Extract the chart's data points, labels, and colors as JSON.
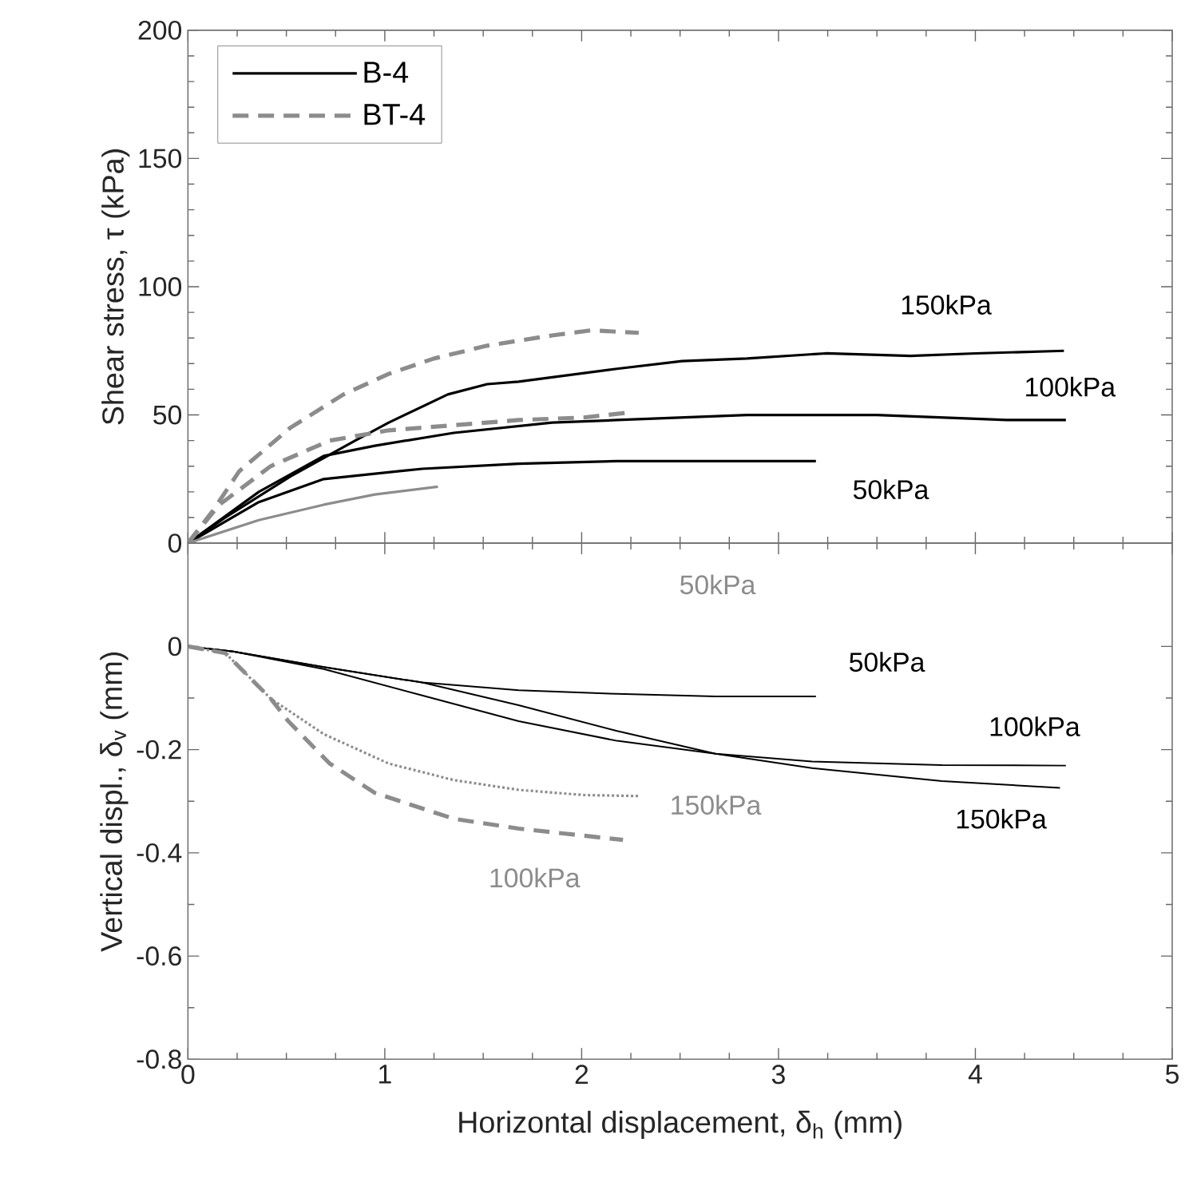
{
  "chart_data": [
    {
      "type": "line",
      "ylabel": "Shear stress, τ (kPa)",
      "xlim": [
        0,
        5
      ],
      "xticks": [
        0,
        1,
        2,
        3,
        4,
        5
      ],
      "ylim": [
        0,
        200
      ],
      "yticks": [
        0,
        50,
        100,
        150,
        200
      ],
      "tick_labels": "y",
      "grid": false,
      "legend": "top left",
      "marker": "none",
      "series": [
        {
          "name": "B-4",
          "color": "#000000",
          "line_style": "solid",
          "x": [
            0,
            0.19,
            0.52,
            0.85,
            1.02,
            1.32,
            1.52,
            1.68,
            2.18,
            2.51,
            2.84,
            3.24,
            3.67,
            4.0,
            4.45
          ],
          "values": [
            0,
            10,
            26,
            40,
            47,
            58,
            62,
            63,
            68,
            71,
            72,
            74,
            73,
            74,
            75
          ]
        },
        {
          "name": "BT-4",
          "color": "#8c8c8c",
          "line_style": "dashed",
          "x": [
            0,
            0.13,
            0.26,
            0.52,
            0.79,
            1.02,
            1.25,
            1.52,
            1.85,
            2.05,
            2.29
          ],
          "values": [
            0,
            13,
            28,
            45,
            58,
            66,
            72,
            77,
            81,
            83,
            82
          ]
        },
        {
          "color": "#000000",
          "line_style": "solid",
          "x": [
            0,
            0.36,
            0.69,
            0.95,
            1.35,
            1.85,
            2.18,
            2.84,
            3.5,
            4.16,
            4.46
          ],
          "values": [
            0,
            20,
            34,
            38,
            43,
            47,
            48,
            50,
            50,
            48,
            48
          ]
        },
        {
          "color": "#000000",
          "line_style": "solid",
          "x": [
            0,
            0.36,
            0.69,
            1.19,
            1.68,
            2.18,
            2.68,
            3.19
          ],
          "values": [
            0,
            16,
            25,
            29,
            31,
            32,
            32,
            32
          ]
        },
        {
          "color": "#8c8c8c",
          "line_style": "dashed",
          "x": [
            0,
            0.16,
            0.42,
            0.72,
            1.02,
            1.35,
            1.68,
            2.01,
            2.25
          ],
          "values": [
            0,
            15,
            30,
            40,
            44,
            46,
            48,
            49,
            51
          ]
        },
        {
          "color": "#8c8c8c",
          "line_style": "solid",
          "x": [
            0,
            0.36,
            0.69,
            0.95,
            1.27
          ],
          "values": [
            0,
            9,
            15,
            19,
            22
          ]
        }
      ],
      "annotations": [
        "150kPa",
        "100kPa",
        "50kPa"
      ]
    },
    {
      "type": "line",
      "xlabel": "Horizontal displacement, δ$_{h}$ (mm)",
      "ylabel": "Vertical displ., δ$_{v}$ (mm)",
      "xlim": [
        0,
        5
      ],
      "xticks": [
        0,
        1,
        2,
        3,
        4,
        5
      ],
      "ylim": [
        -0.8,
        0.2
      ],
      "yticks": [
        -0.8,
        -0.6,
        -0.4,
        -0.2,
        0
      ],
      "grid": false,
      "marker": "none",
      "series": [
        {
          "color": "#000000",
          "line_style": "solid",
          "x": [
            0,
            0.23,
            0.69,
            1.19,
            1.68,
            2.18,
            2.68,
            3.19
          ],
          "values": [
            0,
            -0.01,
            -0.04,
            -0.07,
            -0.085,
            -0.092,
            -0.097,
            -0.097
          ]
        },
        {
          "color": "#000000",
          "line_style": "solid",
          "x": [
            0,
            0.23,
            0.69,
            1.19,
            1.68,
            2.18,
            2.68,
            3.17,
            3.83,
            4.46
          ],
          "values": [
            0,
            -0.01,
            -0.04,
            -0.07,
            -0.114,
            -0.164,
            -0.208,
            -0.223,
            -0.23,
            -0.231
          ]
        },
        {
          "color": "#000000",
          "line_style": "solid",
          "x": [
            0,
            0.23,
            0.69,
            1.19,
            1.68,
            2.18,
            2.68,
            3.17,
            3.83,
            4.43
          ],
          "values": [
            0,
            -0.01,
            -0.044,
            -0.095,
            -0.145,
            -0.183,
            -0.208,
            -0.236,
            -0.261,
            -0.274
          ]
        },
        {
          "color": "#8c8c8c",
          "line_style": "dotted",
          "x": [
            0,
            0.19,
            0.42,
            0.69,
            1.02,
            1.35,
            1.68,
            2.01,
            2.29
          ],
          "values": [
            0,
            -0.013,
            -0.101,
            -0.17,
            -0.227,
            -0.259,
            -0.278,
            -0.288,
            -0.29
          ]
        },
        {
          "color": "#8c8c8c",
          "line_style": "dashed",
          "x": [
            0,
            0.19,
            0.42,
            0.51,
            0.72,
            0.95,
            1.35,
            1.68,
            2.21
          ],
          "values": [
            0,
            -0.013,
            -0.101,
            -0.145,
            -0.227,
            -0.284,
            -0.334,
            -0.353,
            -0.375
          ]
        }
      ],
      "annotations": [
        "50kPa",
        "50kPa",
        "100kPa",
        "150kPa",
        "150kPa",
        "100kPa"
      ]
    }
  ]
}
